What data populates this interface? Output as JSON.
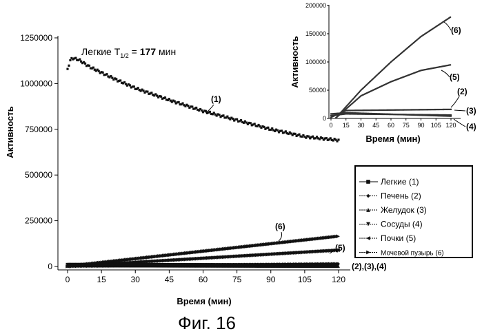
{
  "caption": "Фиг. 16",
  "chart_data": [
    {
      "type": "scatter",
      "xlabel": "Время (мин)",
      "ylabel": "Активность",
      "xlim": [
        -4,
        125
      ],
      "ylim": [
        -15000,
        1250000
      ],
      "x_ticks": [
        "0",
        "15",
        "30",
        "45",
        "60",
        "75",
        "90",
        "105",
        "120"
      ],
      "y_ticks": [
        "0",
        "250000",
        "500000",
        "750000",
        "1000000",
        "1250000"
      ],
      "annotation": {
        "prefix": "Легкие T",
        "sub": "1/2",
        "eq": " = ",
        "value": "177",
        "unit": " мин"
      },
      "series": [
        {
          "name": "Легкие (1)",
          "tag": "(1)",
          "marker": "square",
          "x": [
            0,
            1,
            2,
            5,
            10,
            20,
            30,
            45,
            60,
            75,
            90,
            105,
            120
          ],
          "values": [
            1080000,
            1120000,
            1140000,
            1130000,
            1090000,
            1030000,
            975000,
            910000,
            850000,
            800000,
            750000,
            710000,
            690000
          ]
        },
        {
          "name": "Печень (2)",
          "tag": "(2)",
          "marker": "diamond",
          "x": [
            0,
            120
          ],
          "values": [
            2000,
            14000
          ]
        },
        {
          "name": "Желудок (3)",
          "tag": "(3)",
          "marker": "triangle",
          "x": [
            0,
            120
          ],
          "values": [
            6000,
            3000
          ]
        },
        {
          "name": "Сосуды (4)",
          "tag": "(4)",
          "marker": "triangle-down",
          "x": [
            0,
            120
          ],
          "values": [
            9000,
            6000
          ]
        },
        {
          "name": "Почки (5)",
          "tag": "(5)",
          "marker": "triangle-left",
          "x": [
            0,
            120
          ],
          "values": [
            1000,
            90000
          ]
        },
        {
          "name": "Мочевой пузырь (6)",
          "tag": "(6)",
          "marker": "triangle-right",
          "x": [
            0,
            120
          ],
          "values": [
            1000,
            165000
          ]
        }
      ],
      "bottom_label": "(2),(3),(4)"
    },
    {
      "type": "scatter",
      "xlabel": "Время (мин)",
      "ylabel": "Активность",
      "xlim": [
        0,
        125
      ],
      "ylim": [
        0,
        200000
      ],
      "x_ticks": [
        "0",
        "15",
        "30",
        "45",
        "60",
        "75",
        "90",
        "105",
        "120"
      ],
      "y_ticks": [
        "0",
        "50000",
        "100000",
        "150000",
        "200000"
      ],
      "series": [
        {
          "name": "Печень (2)",
          "tag": "(2)",
          "x": [
            0,
            15,
            120
          ],
          "values": [
            2000,
            14000,
            16000
          ]
        },
        {
          "name": "Желудок (3)",
          "tag": "(3)",
          "x": [
            0,
            15,
            120
          ],
          "values": [
            5000,
            8000,
            6000
          ]
        },
        {
          "name": "Сосуды (4)",
          "tag": "(4)",
          "x": [
            0,
            15,
            120
          ],
          "values": [
            8000,
            10000,
            4000
          ]
        },
        {
          "name": "Почки (5)",
          "tag": "(5)",
          "x": [
            5,
            30,
            60,
            90,
            120
          ],
          "values": [
            1000,
            40000,
            65000,
            85000,
            95000
          ]
        },
        {
          "name": "Мочевой пузырь (6)",
          "tag": "(6)",
          "x": [
            5,
            30,
            60,
            90,
            120
          ],
          "values": [
            1000,
            50000,
            100000,
            145000,
            180000
          ]
        }
      ]
    }
  ],
  "legend": {
    "items": [
      "Легкие (1)",
      "Печень (2)",
      "Желудок (3)",
      "Сосуды (4)",
      "Почки (5)",
      "Мочевой пузырь (6)"
    ]
  }
}
